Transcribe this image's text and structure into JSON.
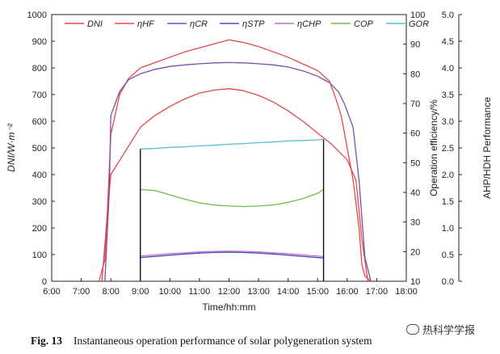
{
  "chart_data": {
    "type": "line",
    "title": "",
    "xlabel": "Time/hh:mm",
    "ylabel_left": "DNI/W·m⁻²",
    "ylabel_right1": "Operation efficiency/%",
    "ylabel_right2": "AHP/HDH Performance",
    "x_ticks": [
      "6:00",
      "7:00",
      "8:00",
      "9:00",
      "10:00",
      "11:00",
      "12:00",
      "13:00",
      "14:00",
      "15:00",
      "16:00",
      "17:00",
      "18:00"
    ],
    "xlim": [
      6,
      18
    ],
    "ylim_left": [
      0,
      1000
    ],
    "ylim_right1": [
      10,
      100
    ],
    "ylim_right2": [
      0.0,
      5.0
    ],
    "y_ticks_left": [
      "0",
      "100",
      "200",
      "300",
      "400",
      "500",
      "600",
      "700",
      "800",
      "900",
      "1000"
    ],
    "y_ticks_right1": [
      "10",
      "20",
      "30",
      "40",
      "50",
      "60",
      "70",
      "80",
      "90",
      "100"
    ],
    "y_ticks_right2": [
      "0.0",
      "0.5",
      "1.0",
      "1.5",
      "2.0",
      "2.5",
      "3.0",
      "3.5",
      "4.0",
      "4.5",
      "5.0"
    ],
    "legend_position": "top",
    "series": [
      {
        "name": "DNI",
        "axis": "left",
        "color": "#e8474a",
        "x": [
          7.6,
          7.8,
          7.9,
          8.0,
          8.3,
          8.6,
          9.0,
          9.5,
          10.0,
          10.5,
          11.0,
          11.5,
          12.0,
          12.5,
          13.0,
          13.5,
          14.0,
          14.5,
          15.0,
          15.4,
          15.6,
          15.8,
          16.0,
          16.2,
          16.4,
          16.5,
          16.6,
          16.8
        ],
        "y": [
          0,
          80,
          300,
          550,
          700,
          760,
          800,
          820,
          840,
          860,
          875,
          890,
          905,
          895,
          880,
          860,
          840,
          815,
          790,
          750,
          690,
          620,
          500,
          380,
          200,
          60,
          20,
          0
        ]
      },
      {
        "name": "ηHF",
        "axis": "right1",
        "color": "#e8474a",
        "x": [
          7.7,
          7.9,
          8.0,
          8.5,
          9.0,
          9.5,
          10.0,
          10.5,
          11.0,
          11.5,
          12.0,
          12.5,
          13.0,
          13.5,
          14.0,
          14.5,
          15.0,
          15.5,
          16.0,
          16.3,
          16.5,
          16.7
        ],
        "y": [
          10,
          35,
          46,
          54,
          62,
          66,
          69,
          71.5,
          73.5,
          74.5,
          75,
          74.3,
          72.7,
          70.5,
          67.5,
          64,
          60,
          56,
          51,
          44,
          24,
          10
        ]
      },
      {
        "name": "ηCR",
        "axis": "right1",
        "color": "#7b4ea8",
        "x": [
          7.8,
          7.95,
          8.0,
          8.3,
          8.6,
          9.0,
          9.5,
          10.0,
          10.5,
          11.0,
          11.5,
          12.0,
          12.5,
          13.0,
          13.5,
          14.0,
          14.5,
          15.0,
          15.4,
          15.7,
          15.9,
          16.2,
          16.4,
          16.6,
          16.8
        ],
        "y": [
          10,
          40,
          66,
          74,
          78,
          80,
          81.5,
          82.5,
          83,
          83.4,
          83.7,
          83.8,
          83.7,
          83.4,
          83,
          82.3,
          81,
          79.2,
          77,
          74,
          70,
          62,
          44,
          18,
          10
        ]
      },
      {
        "name": "ηSTP",
        "axis": "right1",
        "color": "#4a4fb0",
        "x": [
          9.0,
          9.5,
          10.0,
          10.5,
          11.0,
          11.5,
          12.0,
          12.5,
          13.0,
          13.5,
          14.0,
          14.5,
          15.0,
          15.2
        ],
        "y": [
          18.0,
          18.4,
          18.8,
          19.2,
          19.5,
          19.7,
          19.8,
          19.7,
          19.5,
          19.2,
          18.8,
          18.4,
          18.0,
          17.8
        ]
      },
      {
        "name": "ηCHP",
        "axis": "right1",
        "color": "#c46fd2",
        "x": [
          9.0,
          9.5,
          10.0,
          10.5,
          11.0,
          11.5,
          12.0,
          12.5,
          13.0,
          13.5,
          14.0,
          14.5,
          15.0,
          15.2
        ],
        "y": [
          18.5,
          18.9,
          19.3,
          19.6,
          19.9,
          20.1,
          20.2,
          20.1,
          19.9,
          19.6,
          19.3,
          18.9,
          18.5,
          18.3
        ]
      },
      {
        "name": "COP",
        "axis": "right2",
        "color": "#6cbe45",
        "x": [
          9.0,
          9.5,
          10.0,
          10.5,
          11.0,
          11.5,
          12.0,
          12.5,
          13.0,
          13.5,
          14.0,
          14.5,
          15.0,
          15.2
        ],
        "y": [
          1.72,
          1.7,
          1.62,
          1.54,
          1.47,
          1.43,
          1.41,
          1.4,
          1.41,
          1.43,
          1.48,
          1.55,
          1.65,
          1.72
        ]
      },
      {
        "name": "GOR",
        "axis": "right2",
        "color": "#5bbfcc",
        "x": [
          9.0,
          9.5,
          10.0,
          10.5,
          11.0,
          11.5,
          12.0,
          12.5,
          13.0,
          13.5,
          14.0,
          14.5,
          15.0,
          15.2
        ],
        "y": [
          2.48,
          2.49,
          2.51,
          2.52,
          2.54,
          2.55,
          2.57,
          2.58,
          2.6,
          2.61,
          2.63,
          2.64,
          2.65,
          2.66
        ]
      }
    ]
  },
  "caption": {
    "figure_no": "Fig. 13",
    "text": "Instantaneous operation performance of solar polygeneration system"
  },
  "watermark": {
    "text": "热科学学报"
  }
}
